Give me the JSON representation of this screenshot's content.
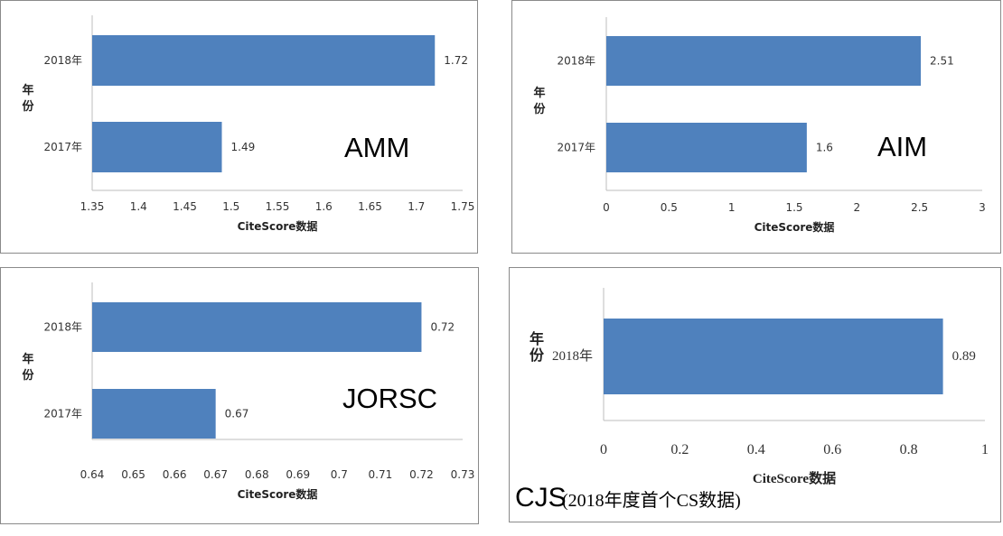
{
  "chart_data": [
    {
      "type": "bar",
      "orientation": "horizontal",
      "label": "AMM",
      "categories": [
        "2018年",
        "2017年"
      ],
      "values": [
        1.72,
        1.49
      ],
      "value_labels": [
        "1.72",
        "1.49"
      ],
      "xlabel": "CiteScore数据",
      "ylabel": "年份",
      "xlim": [
        1.35,
        1.75
      ],
      "xticks": [
        "1.35",
        "1.4",
        "1.45",
        "1.5",
        "1.55",
        "1.6",
        "1.65",
        "1.7",
        "1.75"
      ],
      "bar_color": "#4f81bd",
      "legend": "none"
    },
    {
      "type": "bar",
      "orientation": "horizontal",
      "label": "AIM",
      "categories": [
        "2018年",
        "2017年"
      ],
      "values": [
        2.51,
        1.6
      ],
      "value_labels": [
        "2.51",
        "1.6"
      ],
      "xlabel": "CiteScore数据",
      "ylabel": "年份",
      "xlim": [
        0,
        3
      ],
      "xticks": [
        "0",
        "0.5",
        "1",
        "1.5",
        "2",
        "2.5",
        "3"
      ],
      "bar_color": "#4f81bd",
      "legend": "none"
    },
    {
      "type": "bar",
      "orientation": "horizontal",
      "label": "JORSC",
      "categories": [
        "2018年",
        "2017年"
      ],
      "values": [
        0.72,
        0.67
      ],
      "value_labels": [
        "0.72",
        "0.67"
      ],
      "xlabel": "CiteScore数据",
      "ylabel": "年份",
      "xlim": [
        0.64,
        0.73
      ],
      "xticks": [
        "0.64",
        "0.65",
        "0.66",
        "0.67",
        "0.68",
        "0.69",
        "0.7",
        "0.71",
        "0.72",
        "0.73"
      ],
      "bar_color": "#4f81bd",
      "legend": "none"
    },
    {
      "type": "bar",
      "orientation": "horizontal",
      "label": "CJS",
      "note": "(2018年度首个CS数据)",
      "categories": [
        "2018年"
      ],
      "values": [
        0.89
      ],
      "value_labels": [
        "0.89"
      ],
      "xlabel": "CiteScore数据",
      "ylabel": "年份",
      "xlim": [
        0,
        1
      ],
      "xticks": [
        "0",
        "0.2",
        "0.4",
        "0.6",
        "0.8",
        "1"
      ],
      "bar_color": "#4f81bd",
      "legend": "none"
    }
  ]
}
